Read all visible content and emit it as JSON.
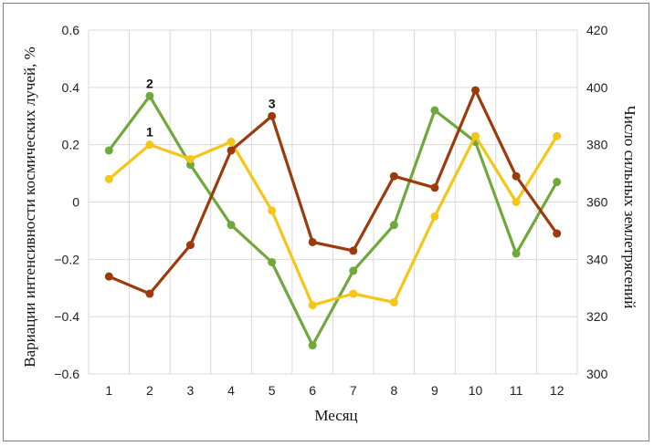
{
  "chart_data": {
    "type": "line",
    "title": "",
    "xlabel": "Месяц",
    "ylabel": "Вариации интенсивности космических лучей, %",
    "y2label": "Число сильных землетрясений",
    "x": [
      1,
      2,
      3,
      4,
      5,
      6,
      7,
      8,
      9,
      10,
      11,
      12
    ],
    "ylim": [
      -0.6,
      0.6
    ],
    "yticks": [
      "−0.6",
      "−0.4",
      "−0.2",
      "0",
      "0.2",
      "0.4",
      "0.6"
    ],
    "y2lim": [
      300,
      420
    ],
    "y2ticks": [
      "300",
      "320",
      "340",
      "360",
      "380",
      "400",
      "420"
    ],
    "grid": true,
    "series": [
      {
        "axis": "left",
        "color": "#70a83c",
        "values": [
          0.18,
          0.37,
          0.13,
          -0.08,
          -0.21,
          -0.5,
          -0.24,
          -0.08,
          0.32,
          0.21,
          -0.18,
          0.07
        ]
      },
      {
        "axis": "left",
        "color": "#f5c518",
        "values": [
          0.08,
          0.2,
          0.15,
          0.21,
          -0.03,
          -0.36,
          -0.32,
          -0.35,
          -0.05,
          0.23,
          0.0,
          0.23
        ]
      },
      {
        "axis": "right",
        "color": "#9c3a0c",
        "values": [
          334,
          328,
          345,
          378,
          390,
          346,
          343,
          369,
          365,
          399,
          369,
          349
        ]
      }
    ],
    "annotations": [
      {
        "text": "1",
        "x": 2,
        "y": 0.2,
        "axis": "left"
      },
      {
        "text": "2",
        "x": 2,
        "y": 0.37,
        "axis": "left"
      },
      {
        "text": "3",
        "x": 5,
        "y": 390,
        "axis": "right"
      }
    ]
  }
}
